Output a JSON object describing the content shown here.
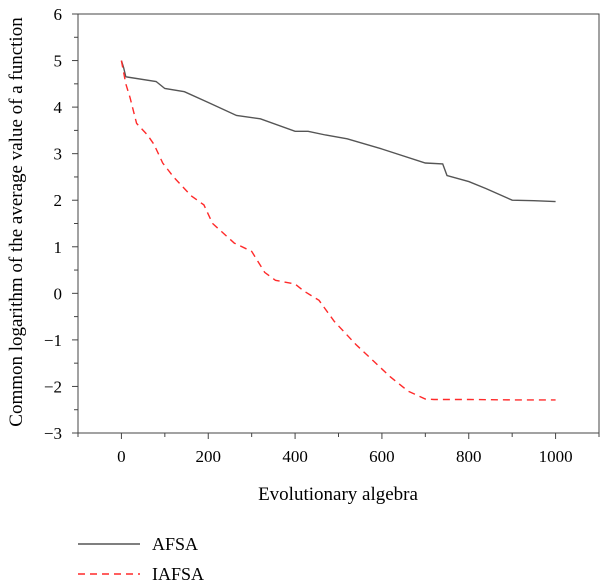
{
  "chart_data": {
    "type": "line",
    "title": "",
    "xlabel": "Evolutionary algebra",
    "ylabel": "Common logarithm of the average value of a function",
    "xlim": [
      -100,
      1100
    ],
    "ylim": [
      -3,
      6
    ],
    "xticks": [
      0,
      200,
      400,
      600,
      800,
      1000
    ],
    "yticks": [
      -3,
      -2,
      -1,
      0,
      1,
      2,
      3,
      4,
      5,
      6
    ],
    "grid": false,
    "legend_position": "bottom-left, below the plot",
    "series": [
      {
        "name": "AFSA",
        "color": "#555555",
        "dash": "solid",
        "x": [
          0,
          5,
          10,
          80,
          100,
          145,
          200,
          265,
          320,
          400,
          430,
          470,
          520,
          600,
          700,
          740,
          750,
          800,
          840,
          900,
          950,
          1000
        ],
        "y": [
          5.0,
          4.85,
          4.65,
          4.55,
          4.4,
          4.33,
          4.1,
          3.82,
          3.75,
          3.48,
          3.48,
          3.4,
          3.32,
          3.1,
          2.8,
          2.78,
          2.53,
          2.4,
          2.25,
          2.0,
          1.99,
          1.97
        ]
      },
      {
        "name": "IAFSA",
        "color": "#ff2a2a",
        "dash": "dashed",
        "x": [
          0,
          10,
          20,
          35,
          60,
          75,
          95,
          120,
          160,
          190,
          210,
          260,
          300,
          330,
          355,
          400,
          420,
          455,
          490,
          540,
          580,
          620,
          660,
          700,
          720,
          800,
          900,
          1000
        ],
        "y": [
          5.0,
          4.5,
          4.2,
          3.65,
          3.4,
          3.2,
          2.8,
          2.5,
          2.1,
          1.9,
          1.5,
          1.08,
          0.9,
          0.45,
          0.28,
          0.2,
          0.05,
          -0.15,
          -0.6,
          -1.1,
          -1.45,
          -1.8,
          -2.1,
          -2.27,
          -2.28,
          -2.28,
          -2.29,
          -2.29
        ]
      }
    ]
  }
}
